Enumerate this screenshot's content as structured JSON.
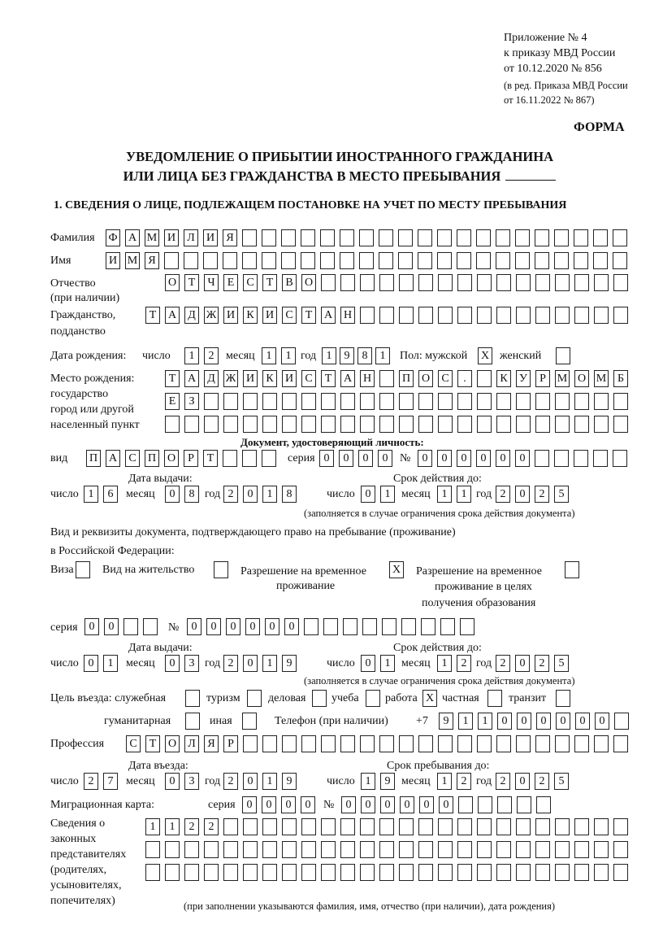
{
  "header": {
    "appendix": "Приложение № 4",
    "order_line1": "к приказу МВД России",
    "order_line2": "от 10.12.2020 № 856",
    "edition_line1": "(в ред. Приказа МВД России",
    "edition_line2": "от 16.11.2022 № 867)",
    "form_label": "ФОРМА"
  },
  "title": {
    "line1": "УВЕДОМЛЕНИЕ О ПРИБЫТИИ ИНОСТРАННОГО ГРАЖДАНИНА",
    "line2": "ИЛИ ЛИЦА БЕЗ ГРАЖДАНСТВА В МЕСТО ПРЕБЫВАНИЯ"
  },
  "section1": {
    "heading": "1. СВЕДЕНИЯ О ЛИЦЕ, ПОДЛЕЖАЩЕМ ПОСТАНОВКЕ НА УЧЕТ ПО МЕСТУ ПРЕБЫВАНИЯ"
  },
  "labels": {
    "surname": "Фамилия",
    "name": "Имя",
    "patronymic": "Отчество",
    "patronymic_note": "(при наличии)",
    "citizenship1": "Гражданство,",
    "citizenship2": "подданство",
    "birth_date": "Дата рождения:",
    "day": "число",
    "month": "месяц",
    "year": "год",
    "sex": "Пол: мужской",
    "female": "женский",
    "birthplace1": "Место рождения:",
    "birthplace2": "государство",
    "birthplace3": "город или другой",
    "birthplace4": "населенный пункт",
    "id_doc": "Документ, удостоверяющий личность:",
    "kind": "вид",
    "series": "серия",
    "number": "№",
    "issue_date": "Дата выдачи:",
    "valid_until": "Срок действия до:",
    "validity_note": "(заполняется в случае ограничения срока действия документа)",
    "stay_doc1": "Вид и реквизиты документа, подтверждающего право на пребывание (проживание)",
    "stay_doc2": "в Российской Федерации:",
    "visa": "Виза",
    "residence_permit": "Вид на жительство",
    "temp_permit1": "Разрешение на временное",
    "temp_permit2": "проживание",
    "temp_edu1": "Разрешение на временное",
    "temp_edu2": "проживание в целях",
    "temp_edu3": "получения образования",
    "purpose": "Цель въезда: служебная",
    "tourism": "туризм",
    "business": "деловая",
    "study": "учеба",
    "work": "работа",
    "private": "частная",
    "transit": "транзит",
    "humanitarian": "гуманитарная",
    "other": "иная",
    "phone": "Телефон (при наличии)",
    "phone_prefix": "+7",
    "profession": "Профессия",
    "entry_date": "Дата въезда:",
    "stay_until": "Срок пребывания до:",
    "migration_card": "Миграционная карта:",
    "reps1": "Сведения о",
    "reps2": "законных",
    "reps3": "представителях",
    "reps4": "(родителях,",
    "reps5": "усыновителях,",
    "reps6": "попечителях)",
    "reps_note": "(при заполнении указываются фамилия, имя, отчество (при наличии), дата рождения)"
  },
  "person": {
    "surname": [
      "Ф",
      "А",
      "М",
      "И",
      "Л",
      "И",
      "Я"
    ],
    "name": [
      "И",
      "М",
      "Я"
    ],
    "patronymic": [
      "О",
      "Т",
      "Ч",
      "Е",
      "С",
      "Т",
      "В",
      "О"
    ],
    "citizenship": [
      "Т",
      "А",
      "Д",
      "Ж",
      "И",
      "К",
      "И",
      "С",
      "Т",
      "А",
      "Н"
    ],
    "birth_date": {
      "day": [
        "1",
        "2"
      ],
      "month": [
        "1",
        "1"
      ],
      "year": [
        "1",
        "9",
        "8",
        "1"
      ]
    },
    "sex": {
      "male": [
        "X"
      ],
      "female": []
    },
    "birthplace": {
      "line1": [
        "Т",
        "А",
        "Д",
        "Ж",
        "И",
        "К",
        "И",
        "С",
        "Т",
        "А",
        "Н",
        " ",
        "П",
        "О",
        "С",
        ".",
        " ",
        "К",
        "У",
        "Р",
        "М",
        "О",
        "М",
        "Б"
      ],
      "line2": [
        "Е",
        "З"
      ],
      "line3": []
    },
    "identity_doc": {
      "kind": [
        "П",
        "А",
        "С",
        "П",
        "О",
        "Р",
        "Т"
      ],
      "series": [
        "0",
        "0",
        "0",
        "0"
      ],
      "number": [
        "0",
        "0",
        "0",
        "0",
        "0",
        "0"
      ],
      "issued": {
        "day": [
          "1",
          "6"
        ],
        "month": [
          "0",
          "8"
        ],
        "year": [
          "2",
          "0",
          "1",
          "8"
        ]
      },
      "valid": {
        "day": [
          "0",
          "1"
        ],
        "month": [
          "1",
          "1"
        ],
        "year": [
          "2",
          "0",
          "2",
          "5"
        ]
      }
    },
    "stay_doc": {
      "visa": [],
      "residence_permit": [],
      "temp_permit": [
        "X"
      ],
      "temp_edu": [],
      "series": [
        "0",
        "0"
      ],
      "number": [
        "0",
        "0",
        "0",
        "0",
        "0",
        "0"
      ],
      "issued": {
        "day": [
          "0",
          "1"
        ],
        "month": [
          "0",
          "3"
        ],
        "year": [
          "2",
          "0",
          "1",
          "9"
        ]
      },
      "valid": {
        "day": [
          "0",
          "1"
        ],
        "month": [
          "1",
          "2"
        ],
        "year": [
          "2",
          "0",
          "2",
          "5"
        ]
      }
    },
    "purpose": {
      "official": [],
      "tourism": [],
      "business": [],
      "study": [],
      "work": [
        "X"
      ],
      "private": [],
      "transit": [],
      "humanitarian": [],
      "other": []
    },
    "phone": [
      "9",
      "1",
      "1",
      "0",
      "0",
      "0",
      "0",
      "0",
      "0"
    ],
    "profession": [
      "С",
      "Т",
      "О",
      "Л",
      "Я",
      "Р"
    ],
    "entry": {
      "day": [
        "2",
        "7"
      ],
      "month": [
        "0",
        "3"
      ],
      "year": [
        "2",
        "0",
        "1",
        "9"
      ]
    },
    "stay_until": {
      "day": [
        "1",
        "9"
      ],
      "month": [
        "1",
        "2"
      ],
      "year": [
        "2",
        "0",
        "2",
        "5"
      ]
    },
    "migration_card": {
      "series": [
        "0",
        "0",
        "0",
        "0"
      ],
      "number": [
        "0",
        "0",
        "0",
        "0",
        "0",
        "0"
      ]
    },
    "representatives": {
      "line1": [
        "1",
        "1",
        "2",
        "2"
      ],
      "line2": [],
      "line3": []
    }
  }
}
